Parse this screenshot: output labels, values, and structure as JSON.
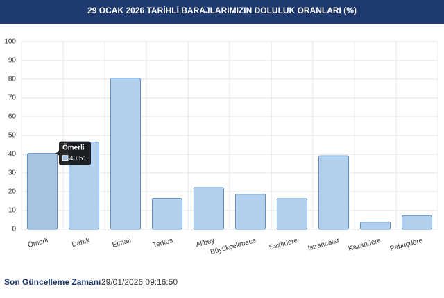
{
  "chart_data": {
    "type": "bar",
    "title": "29 OCAK 2026 TARİHLİ BARAJLARIMIZIN DOLULUK ORANLARI (%)",
    "categories": [
      "Ömerli",
      "Darlık",
      "Elmalı",
      "Terkos",
      "Alibey",
      "Büyükçekmece",
      "Sazlıdere",
      "Istrancalar",
      "Kazandere",
      "Pabuçdere"
    ],
    "values": [
      40.51,
      46.5,
      80.5,
      16.5,
      22.2,
      18.6,
      16.3,
      39.2,
      3.8,
      7.3
    ],
    "value_labels": [
      "40,51",
      null,
      null,
      null,
      null,
      null,
      null,
      null,
      null,
      null
    ],
    "color": "#b3d1ee",
    "ylim": [
      0,
      100
    ],
    "yticks": [
      0,
      10,
      20,
      30,
      40,
      50,
      60,
      70,
      80,
      90,
      100
    ],
    "grid": true,
    "update_label": "Son Güncelleme Zamanı :",
    "update_time": "29/01/2026 09:16:50"
  }
}
